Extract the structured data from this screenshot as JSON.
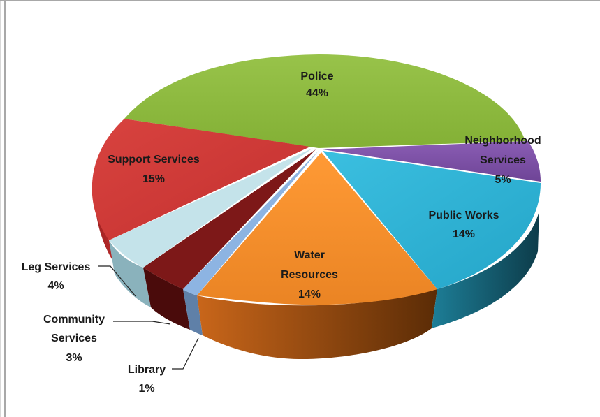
{
  "chart_data": {
    "type": "pie",
    "style": "3d-exploded",
    "slices": [
      {
        "key": "police",
        "name": "Police",
        "pct_label": "44%",
        "value": 44,
        "color": "#8db83c"
      },
      {
        "key": "neighborhood",
        "name": "Neighborhood Services",
        "name_lines": [
          "Neighborhood",
          "Services"
        ],
        "pct_label": "5%",
        "value": 5,
        "color": "#7b4fa3"
      },
      {
        "key": "public_works",
        "name": "Public Works",
        "pct_label": "14%",
        "value": 14,
        "color": "#2fb4d6"
      },
      {
        "key": "water",
        "name": "Water Resources",
        "name_lines": [
          "Water",
          "Resources"
        ],
        "pct_label": "14%",
        "value": 14,
        "color": "#f28e2b"
      },
      {
        "key": "library",
        "name": "Library",
        "pct_label": "1%",
        "value": 1,
        "color": "#8db4e2"
      },
      {
        "key": "community",
        "name": "Community Services",
        "name_lines": [
          "Community",
          "Services"
        ],
        "pct_label": "3%",
        "value": 3,
        "color": "#8b1a1a"
      },
      {
        "key": "leg",
        "name": "Leg Services",
        "pct_label": "4%",
        "value": 4,
        "color": "#c4e3ea"
      },
      {
        "key": "support",
        "name": "Support Services",
        "pct_label": "15%",
        "value": 15,
        "color": "#d23b3b"
      }
    ],
    "legend": "none",
    "title": ""
  }
}
